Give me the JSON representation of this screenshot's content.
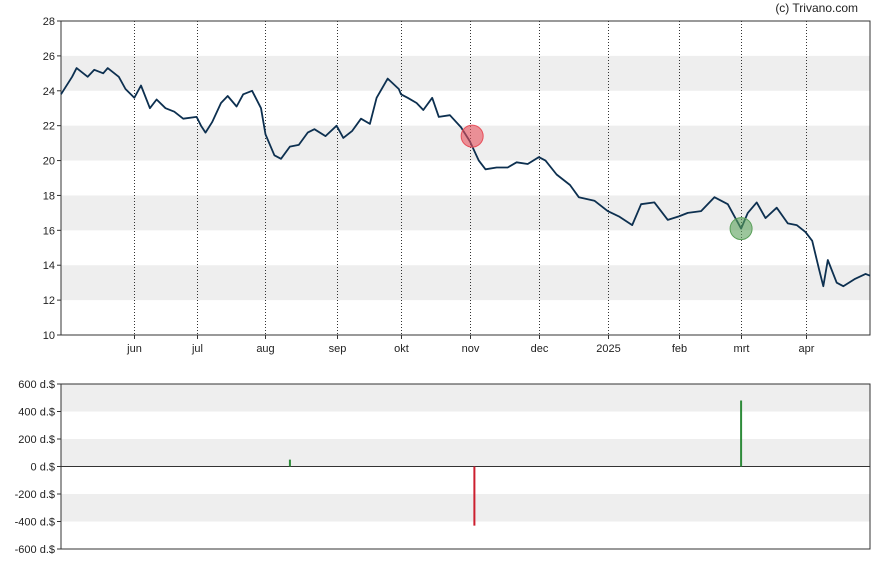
{
  "credit": "(c) Trivano.com",
  "colors": {
    "price_line": "#0d3050",
    "band_fill": "#eeeeee",
    "sell_marker": "#e8505b",
    "buy_marker": "#5aa05a",
    "positive_bar": "#2e8b3a",
    "negative_bar": "#cc1f2f"
  },
  "chart_data": [
    {
      "type": "line",
      "title": "",
      "xlabel": "",
      "ylabel": "",
      "ylim": [
        10,
        28
      ],
      "yticks": [
        10,
        12,
        14,
        16,
        18,
        20,
        22,
        24,
        26,
        28
      ],
      "ytick_labels": [
        "10",
        "12",
        "14",
        "16",
        "18",
        "20",
        "22",
        "24",
        "26",
        "28"
      ],
      "xlim": [
        "2024-05-01",
        "2025-04-30"
      ],
      "xticks": [
        {
          "label": "jun",
          "date": "2024-06-03"
        },
        {
          "label": "jul",
          "date": "2024-07-01"
        },
        {
          "label": "aug",
          "date": "2024-08-01"
        },
        {
          "label": "sep",
          "date": "2024-09-02"
        },
        {
          "label": "okt",
          "date": "2024-10-01"
        },
        {
          "label": "nov",
          "date": "2024-11-01"
        },
        {
          "label": "dec",
          "date": "2024-12-02"
        },
        {
          "label": "2025",
          "date": "2025-01-02"
        },
        {
          "label": "feb",
          "date": "2025-02-03"
        },
        {
          "label": "mrt",
          "date": "2025-03-03"
        },
        {
          "label": "apr",
          "date": "2025-04-01"
        }
      ],
      "grid": "alternating horizontal bands, dotted vertical month lines",
      "series": [
        {
          "x": [
            "2024-05-01",
            "2024-05-06",
            "2024-05-08",
            "2024-05-13",
            "2024-05-16",
            "2024-05-20",
            "2024-05-22",
            "2024-05-27",
            "2024-05-30",
            "2024-06-03",
            "2024-06-06",
            "2024-06-10",
            "2024-06-13",
            "2024-06-17",
            "2024-06-21",
            "2024-06-25",
            "2024-07-01",
            "2024-07-03",
            "2024-07-05",
            "2024-07-08",
            "2024-07-12",
            "2024-07-15",
            "2024-07-19",
            "2024-07-22",
            "2024-07-26",
            "2024-07-30",
            "2024-08-01",
            "2024-08-05",
            "2024-08-08",
            "2024-08-12",
            "2024-08-16",
            "2024-08-20",
            "2024-08-23",
            "2024-08-28",
            "2024-09-02",
            "2024-09-05",
            "2024-09-09",
            "2024-09-13",
            "2024-09-17",
            "2024-09-20",
            "2024-09-25",
            "2024-09-30",
            "2024-10-01",
            "2024-10-04",
            "2024-10-08",
            "2024-10-11",
            "2024-10-15",
            "2024-10-18",
            "2024-10-23",
            "2024-10-28",
            "2024-11-01",
            "2024-11-05",
            "2024-11-08",
            "2024-11-13",
            "2024-11-18",
            "2024-11-22",
            "2024-11-27",
            "2024-12-02",
            "2024-12-05",
            "2024-12-10",
            "2024-12-16",
            "2024-12-20",
            "2024-12-27",
            "2025-01-02",
            "2025-01-07",
            "2025-01-13",
            "2025-01-17",
            "2025-01-23",
            "2025-01-29",
            "2025-02-03",
            "2025-02-07",
            "2025-02-13",
            "2025-02-19",
            "2025-02-25",
            "2025-03-03",
            "2025-03-06",
            "2025-03-10",
            "2025-03-14",
            "2025-03-19",
            "2025-03-24",
            "2025-03-28",
            "2025-04-01",
            "2025-04-04",
            "2025-04-07",
            "2025-04-09",
            "2025-04-11",
            "2025-04-15",
            "2025-04-18",
            "2025-04-23",
            "2025-04-28",
            "2025-04-30"
          ],
          "y": [
            23.8,
            24.8,
            25.3,
            24.8,
            25.2,
            25.0,
            25.3,
            24.8,
            24.1,
            23.6,
            24.3,
            23.0,
            23.5,
            23.0,
            22.8,
            22.4,
            22.5,
            22.0,
            21.6,
            22.2,
            23.3,
            23.7,
            23.1,
            23.8,
            24.0,
            23.0,
            21.5,
            20.3,
            20.1,
            20.8,
            20.9,
            21.6,
            21.8,
            21.4,
            22.0,
            21.3,
            21.7,
            22.4,
            22.1,
            23.6,
            24.7,
            24.1,
            23.8,
            23.6,
            23.3,
            22.9,
            23.6,
            22.5,
            22.6,
            21.9,
            21.1,
            20.0,
            19.5,
            19.6,
            19.6,
            19.9,
            19.8,
            20.2,
            20.0,
            19.2,
            18.6,
            17.9,
            17.7,
            17.1,
            16.8,
            16.3,
            17.5,
            17.6,
            16.6,
            16.8,
            17.0,
            17.1,
            17.9,
            17.5,
            16.1,
            17.0,
            17.6,
            16.7,
            17.3,
            16.4,
            16.3,
            15.9,
            15.4,
            13.8,
            12.8,
            14.3,
            13.0,
            12.8,
            13.2,
            13.5,
            13.4
          ]
        }
      ],
      "markers": [
        {
          "date": "2024-11-02",
          "value": 21.4,
          "kind": "sell"
        },
        {
          "date": "2025-03-03",
          "value": 16.1,
          "kind": "buy"
        }
      ]
    },
    {
      "type": "bar",
      "title": "",
      "xlabel": "",
      "ylabel": "",
      "ylim": [
        -600,
        600
      ],
      "yticks": [
        -600,
        -400,
        -200,
        0,
        200,
        400,
        600
      ],
      "ytick_labels": [
        "-600 d.$",
        "-400 d.$",
        "-200 d.$",
        "0 d.$",
        "200 d.$",
        "400 d.$",
        "600 d.$"
      ],
      "bars": [
        {
          "date": "2024-08-12",
          "value": 50
        },
        {
          "date": "2024-11-03",
          "value": -430
        },
        {
          "date": "2025-03-03",
          "value": 480
        }
      ]
    }
  ]
}
